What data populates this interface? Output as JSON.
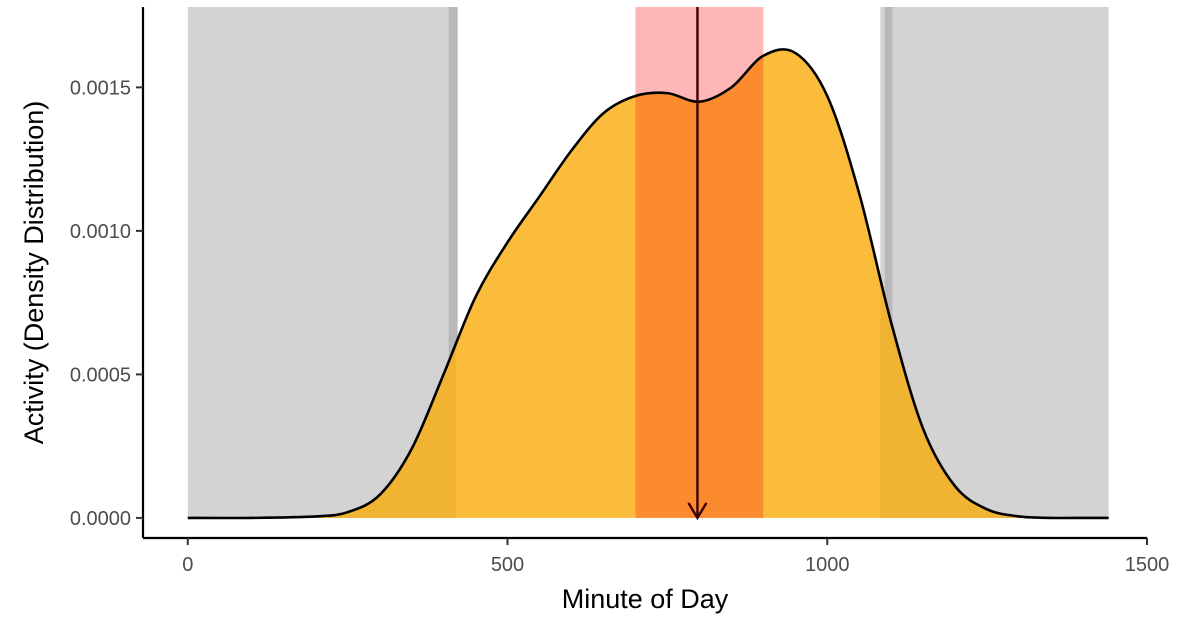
{
  "chart_data": {
    "type": "area",
    "xlabel": "Minute of Day",
    "ylabel": "Activity (Density Distribution)",
    "xlim": [
      -70,
      1500
    ],
    "ylim": [
      -7e-05,
      0.00178
    ],
    "x_ticks": [
      0,
      500,
      1000,
      1500
    ],
    "x_tick_labels": [
      "0",
      "500",
      "1000",
      "1500"
    ],
    "y_ticks": [
      0,
      0.0005,
      0.001,
      0.0015
    ],
    "y_tick_labels": [
      "0.0000",
      "0.0005",
      "0.0010",
      "0.0015"
    ],
    "grid": false,
    "legend": "none",
    "density": {
      "x": [
        0,
        100,
        200,
        250,
        300,
        350,
        400,
        450,
        500,
        550,
        600,
        650,
        700,
        750,
        800,
        850,
        900,
        950,
        1000,
        1050,
        1100,
        1150,
        1200,
        1250,
        1300,
        1350,
        1400,
        1440
      ],
      "y": [
        0,
        0,
        5e-06,
        2e-05,
        8e-05,
        0.00024,
        0.0005,
        0.00077,
        0.00096,
        0.00112,
        0.00128,
        0.00141,
        0.00147,
        0.00148,
        0.00145,
        0.0015,
        0.00161,
        0.00162,
        0.00147,
        0.00113,
        0.00068,
        0.00031,
        0.00011,
        3e-05,
        5e-06,
        0,
        0,
        0
      ],
      "fill": "#fbbc3c",
      "line": "#000000"
    },
    "shaded_ranges": [
      {
        "from": 0,
        "to": 420,
        "color": "#d3d3d3"
      },
      {
        "from": 408,
        "to": 422,
        "color": "#b8b8b8"
      },
      {
        "from": 700,
        "to": 900,
        "color": "#ffb6b6"
      },
      {
        "from": 1083,
        "to": 1440,
        "color": "#d3d3d3"
      },
      {
        "from": 1090,
        "to": 1102,
        "color": "#b8b8b8"
      }
    ],
    "overlap_colors": {
      "gray_density": "#f0b332",
      "red_density": "#fc8a2f"
    },
    "marker": {
      "x": 797,
      "color": "#3d0000",
      "style": "arrow-down"
    }
  }
}
